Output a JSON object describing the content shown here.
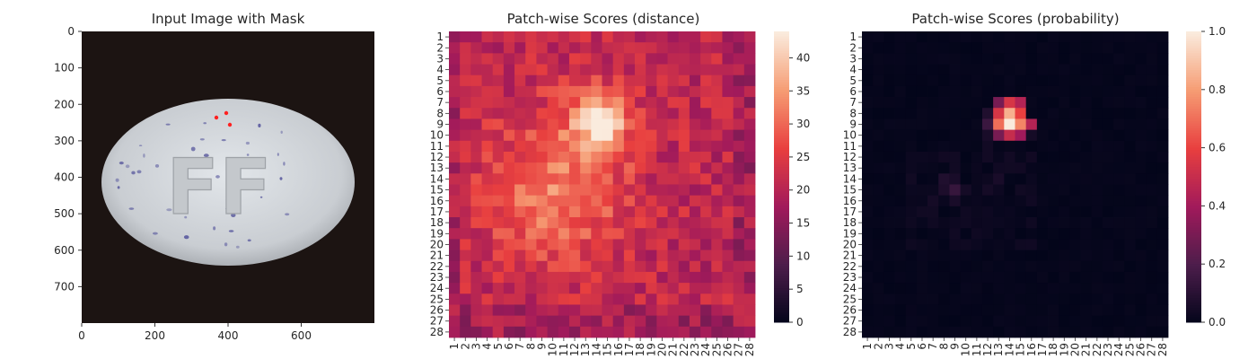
{
  "figure": {
    "titles": [
      "Input Image with Mask",
      "Patch-wise Scores (distance)",
      "Patch-wise Scores (probability)"
    ]
  },
  "colors": {
    "image_background": "#1c1412",
    "pill_fill": "#d4d8dc",
    "pill_speckle": "#5a5a9e",
    "mask_marks": "#ff2020",
    "rocket_stops": [
      "#03051a",
      "#4c1d4b",
      "#a11a5b",
      "#e83f3f",
      "#f69c73",
      "#faebdd"
    ]
  },
  "chart_data": [
    {
      "type": "image",
      "title": "Input Image with Mask",
      "xlim": [
        0,
        800
      ],
      "ylim": [
        800,
        0
      ],
      "x_ticks": [
        0,
        200,
        400,
        600
      ],
      "y_ticks": [
        0,
        100,
        200,
        300,
        400,
        500,
        600,
        700
      ],
      "embossed_text": "FF"
    },
    {
      "type": "heatmap",
      "title": "Patch-wise Scores (distance)",
      "grid_size": 28,
      "row_labels": [
        "1",
        "2",
        "3",
        "4",
        "5",
        "6",
        "7",
        "8",
        "9",
        "10",
        "11",
        "12",
        "13",
        "14",
        "15",
        "16",
        "17",
        "18",
        "19",
        "20",
        "21",
        "22",
        "23",
        "24",
        "25",
        "26",
        "27",
        "28"
      ],
      "col_labels": [
        "1",
        "2",
        "3",
        "4",
        "5",
        "6",
        "7",
        "8",
        "9",
        "10",
        "11",
        "12",
        "13",
        "14",
        "15",
        "16",
        "17",
        "18",
        "19",
        "20",
        "21",
        "22",
        "23",
        "24",
        "25",
        "26",
        "27",
        "28"
      ],
      "vmin": 0,
      "vmax": 44,
      "colorbar_ticks": [
        0,
        5,
        10,
        15,
        20,
        25,
        30,
        35,
        40
      ],
      "base_level": 21,
      "features": [
        {
          "description_free": true,
          "row": 8.6,
          "col": 14.2,
          "sigma": 1.3,
          "amp": 23
        },
        {
          "description_free": true,
          "row": 9.0,
          "col": 14.0,
          "sigma": 3.2,
          "amp": 7
        },
        {
          "description_free": true,
          "row": 15.0,
          "col": 9.0,
          "sigma": 4.5,
          "amp": 8
        },
        {
          "description_free": true,
          "row": 17.0,
          "col": 12.0,
          "sigma": 4.0,
          "amp": 4
        }
      ]
    },
    {
      "type": "heatmap",
      "title": "Patch-wise Scores (probability)",
      "grid_size": 28,
      "row_labels": [
        "1",
        "2",
        "3",
        "4",
        "5",
        "6",
        "7",
        "8",
        "9",
        "10",
        "11",
        "12",
        "13",
        "14",
        "15",
        "16",
        "17",
        "18",
        "19",
        "20",
        "21",
        "22",
        "23",
        "24",
        "25",
        "26",
        "27",
        "28"
      ],
      "col_labels": [
        "1",
        "2",
        "3",
        "4",
        "5",
        "6",
        "7",
        "8",
        "9",
        "10",
        "11",
        "12",
        "13",
        "14",
        "15",
        "16",
        "17",
        "18",
        "19",
        "20",
        "21",
        "22",
        "23",
        "24",
        "25",
        "26",
        "27",
        "28"
      ],
      "vmin": 0,
      "vmax": 1,
      "colorbar_ticks": [
        "0.0",
        "0.2",
        "0.4",
        "0.6",
        "0.8",
        "1.0"
      ],
      "hot_cells": [
        {
          "row": 7,
          "col": 13,
          "value": 0.3
        },
        {
          "row": 7,
          "col": 14,
          "value": 0.55
        },
        {
          "row": 7,
          "col": 15,
          "value": 0.45
        },
        {
          "row": 8,
          "col": 13,
          "value": 0.55
        },
        {
          "row": 8,
          "col": 14,
          "value": 0.85
        },
        {
          "row": 8,
          "col": 15,
          "value": 0.6
        },
        {
          "row": 8,
          "col": 12,
          "value": 0.08
        },
        {
          "row": 9,
          "col": 13,
          "value": 0.7
        },
        {
          "row": 9,
          "col": 14,
          "value": 1.0
        },
        {
          "row": 9,
          "col": 15,
          "value": 0.75
        },
        {
          "row": 9,
          "col": 16,
          "value": 0.45
        },
        {
          "row": 9,
          "col": 12,
          "value": 0.15
        },
        {
          "row": 10,
          "col": 13,
          "value": 0.3
        },
        {
          "row": 10,
          "col": 14,
          "value": 0.5
        },
        {
          "row": 10,
          "col": 15,
          "value": 0.4
        },
        {
          "row": 10,
          "col": 12,
          "value": 0.06
        },
        {
          "row": 10,
          "col": 16,
          "value": 0.05
        },
        {
          "row": 11,
          "col": 12,
          "value": 0.04
        },
        {
          "row": 15,
          "col": 9,
          "value": 0.14
        },
        {
          "row": 14,
          "col": 8,
          "value": 0.08
        },
        {
          "row": 15,
          "col": 8,
          "value": 0.07
        },
        {
          "row": 16,
          "col": 9,
          "value": 0.06
        },
        {
          "row": 14,
          "col": 9,
          "value": 0.06
        },
        {
          "row": 15,
          "col": 10,
          "value": 0.05
        },
        {
          "row": 16,
          "col": 7,
          "value": 0.05
        },
        {
          "row": 14,
          "col": 13,
          "value": 0.06
        },
        {
          "row": 15,
          "col": 12,
          "value": 0.05
        }
      ],
      "background_value": 0.02
    }
  ]
}
